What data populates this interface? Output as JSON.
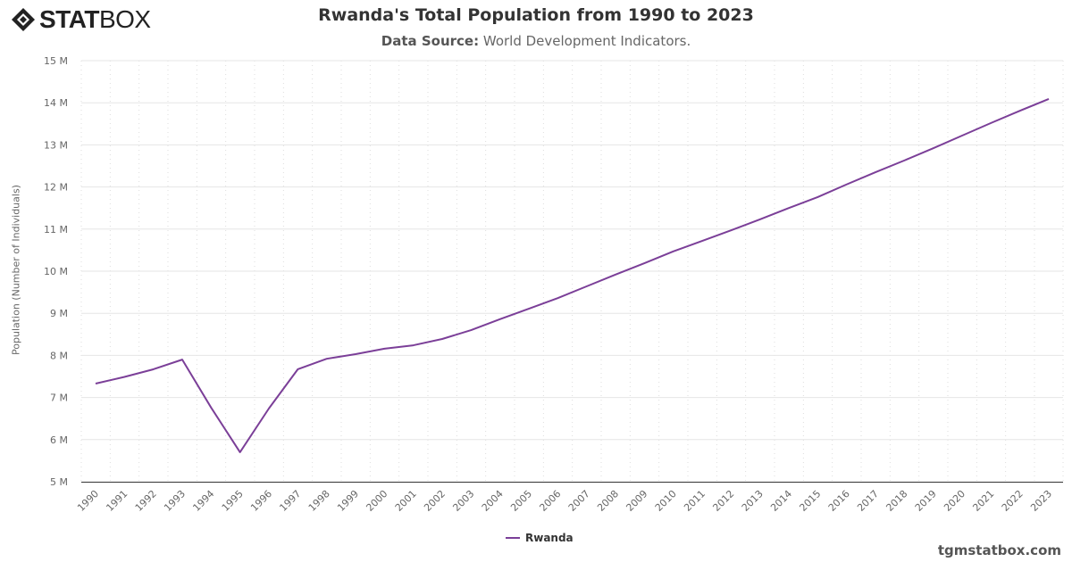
{
  "logo": {
    "bold": "STAT",
    "light": "BOX"
  },
  "header": {
    "title": "Rwanda's Total Population from 1990 to 2023",
    "source_label": "Data Source:",
    "source_value": "World Development Indicators."
  },
  "credit": "tgmstatbox.com",
  "chart_data": {
    "type": "line",
    "title": "Rwanda's Total Population from 1990 to 2023",
    "ylabel": "Population (Number of Individuals)",
    "xlabel": "",
    "ylim": [
      5000000,
      15000000
    ],
    "yticks": [
      "5 M",
      "6 M",
      "7 M",
      "8 M",
      "9 M",
      "10 M",
      "11 M",
      "12 M",
      "13 M",
      "14 M",
      "15 M"
    ],
    "grid": true,
    "legend": "bottom-center",
    "color": "#7b3f98",
    "x": [
      1990,
      1991,
      1992,
      1993,
      1994,
      1995,
      1996,
      1997,
      1998,
      1999,
      2000,
      2001,
      2002,
      2003,
      2004,
      2005,
      2006,
      2007,
      2008,
      2009,
      2010,
      2011,
      2012,
      2013,
      2014,
      2015,
      2016,
      2017,
      2018,
      2019,
      2020,
      2021,
      2022,
      2023
    ],
    "series": [
      {
        "name": "Rwanda",
        "values": [
          7330000,
          7490000,
          7670000,
          7900000,
          6760000,
          5700000,
          6740000,
          7670000,
          7920000,
          8030000,
          8160000,
          8240000,
          8390000,
          8600000,
          8860000,
          9110000,
          9360000,
          9640000,
          9920000,
          10190000,
          10470000,
          10720000,
          10970000,
          11230000,
          11500000,
          11760000,
          12060000,
          12350000,
          12630000,
          12920000,
          13220000,
          13520000,
          13810000,
          14090000
        ]
      }
    ]
  }
}
